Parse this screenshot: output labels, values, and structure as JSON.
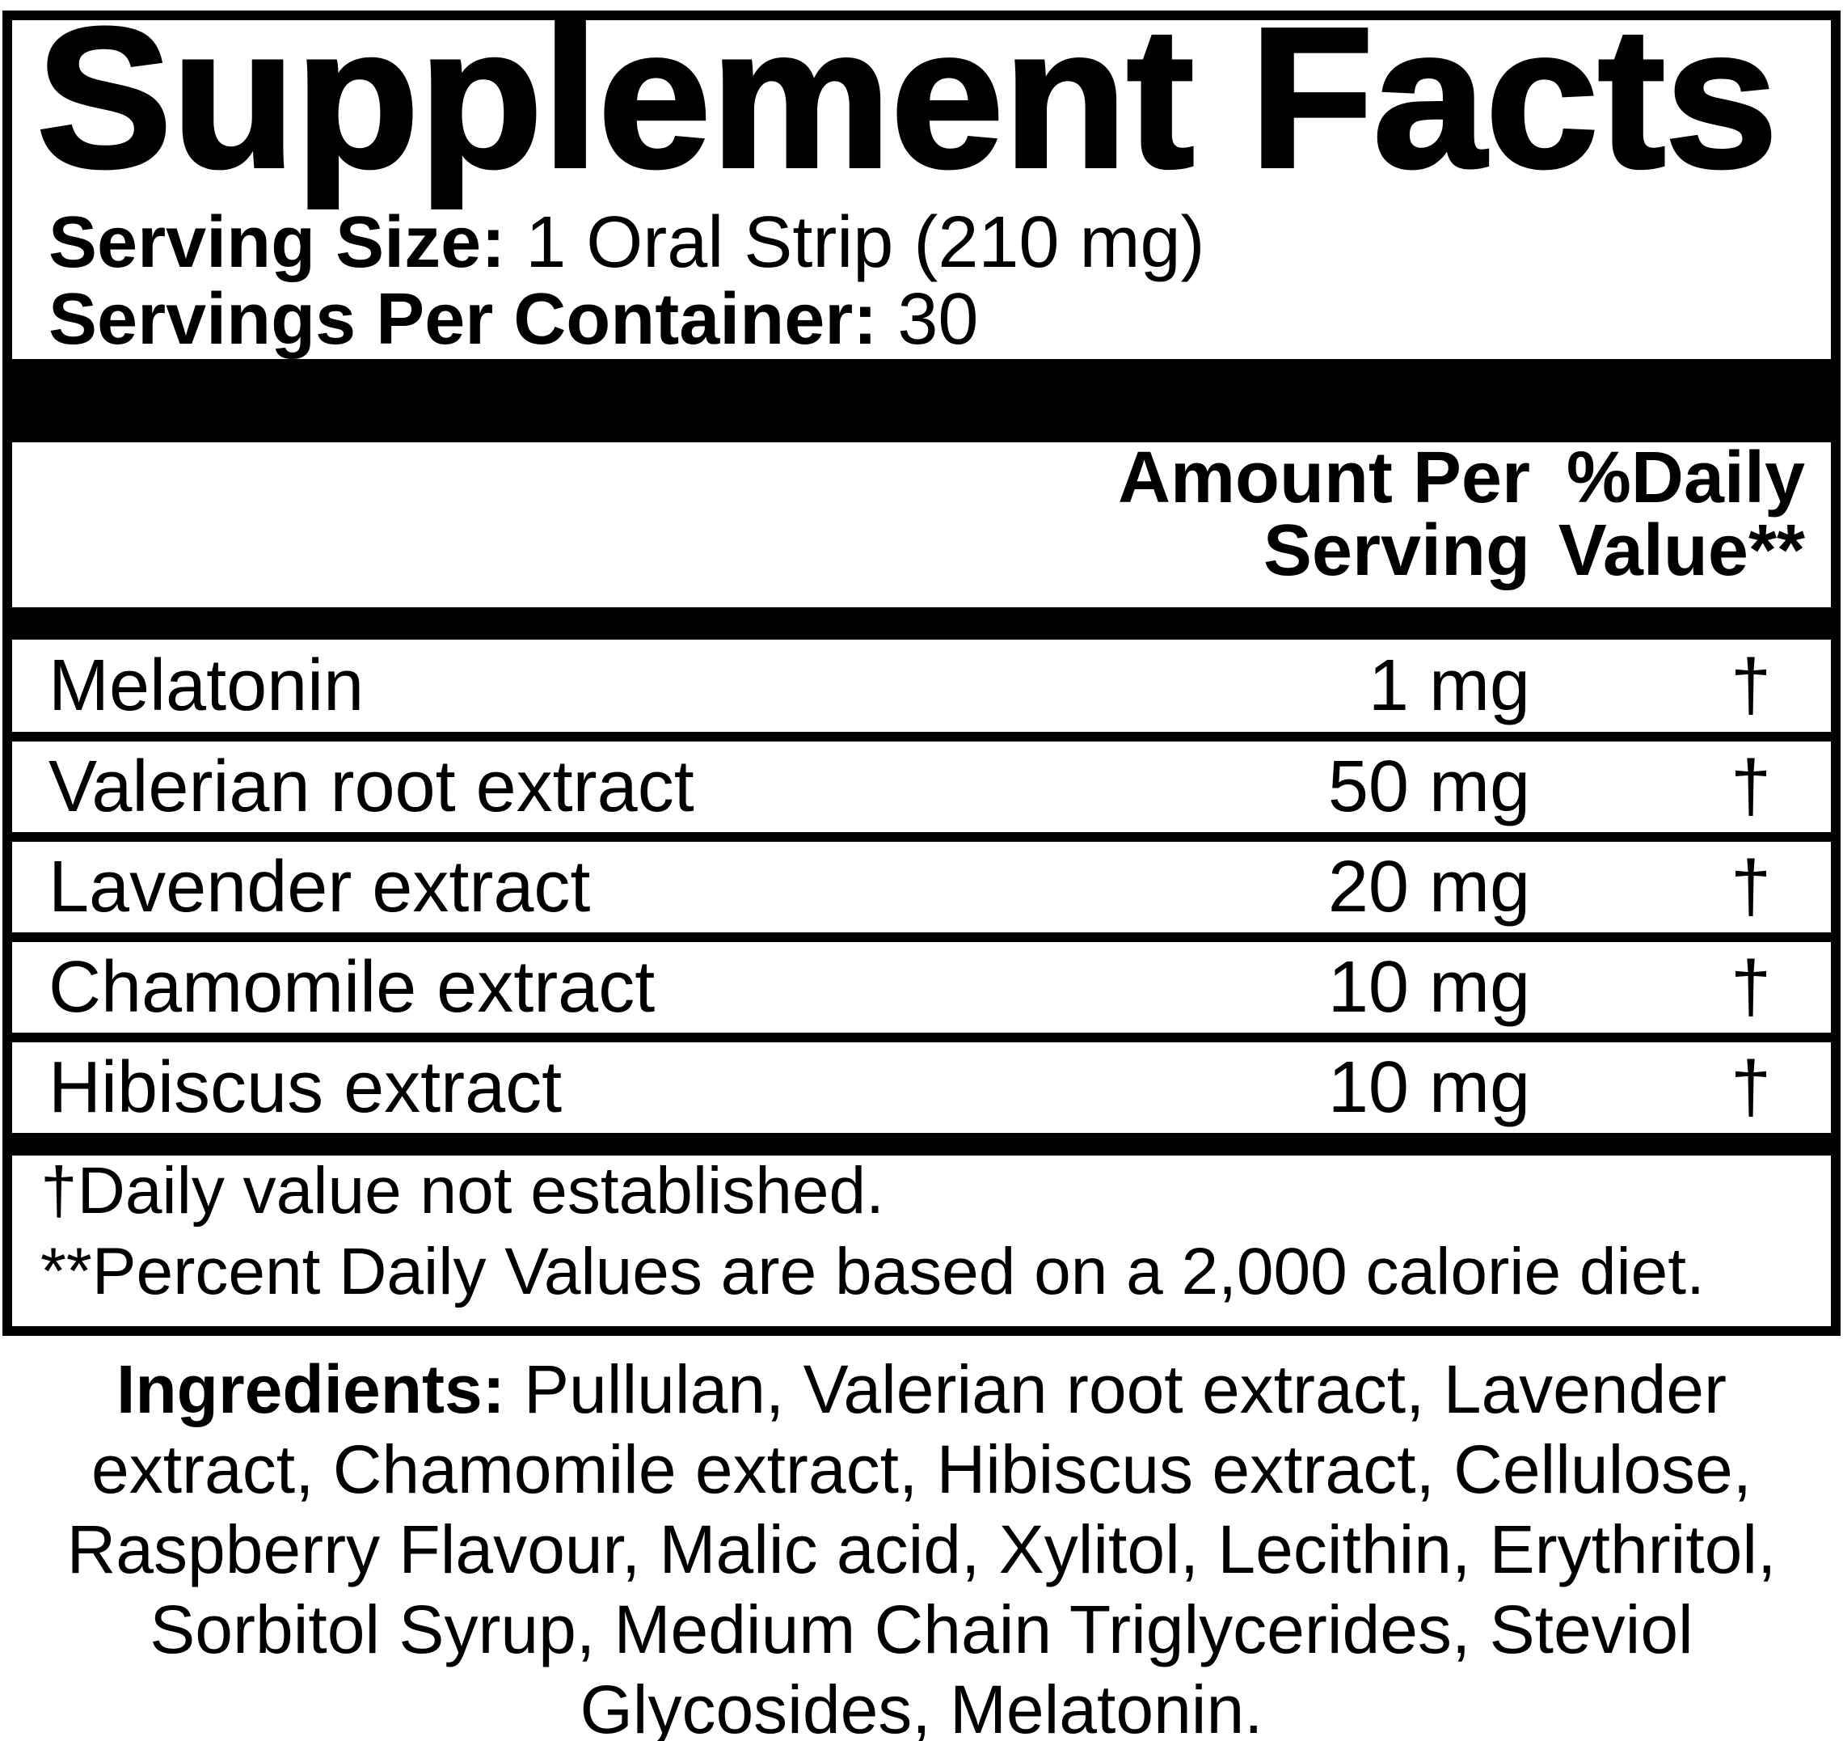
{
  "panel": {
    "title": "Supplement Facts",
    "serving_size": {
      "label": "Serving Size:",
      "value": "1 Oral Strip (210 mg)"
    },
    "servings_per_container": {
      "label": "Servings Per Container:",
      "value": "30"
    },
    "columns": {
      "amount_line1": "Amount Per",
      "amount_line2": "Serving",
      "dv_line1": "%Daily",
      "dv_line2": "Value**"
    },
    "rows": [
      {
        "name": "Melatonin",
        "amount": "1 mg",
        "daily_value": "†"
      },
      {
        "name": "Valerian root extract",
        "amount": "50 mg",
        "daily_value": "†"
      },
      {
        "name": "Lavender extract",
        "amount": "20 mg",
        "daily_value": "†"
      },
      {
        "name": "Chamomile extract",
        "amount": "10 mg",
        "daily_value": "†"
      },
      {
        "name": "Hibiscus extract",
        "amount": "10 mg",
        "daily_value": "†"
      }
    ],
    "footnotes": {
      "dagger_note": "†Daily value not established.",
      "percent_note": "**Percent Daily Values are based on a 2,000 calorie diet."
    }
  },
  "ingredients": {
    "label": "Ingredients:",
    "list": "Pullulan, Valerian root extract, Lavender extract, Chamomile extract, Hibiscus extract, Cellulose, Raspberry Flavour, Malic acid, Xylitol, Lecithin, Erythritol, Sorbitol Syrup, Medium Chain Triglycerides, Steviol Glycosides, Melatonin."
  },
  "colors": {
    "ink": "#000000",
    "background": "#ffffff"
  }
}
